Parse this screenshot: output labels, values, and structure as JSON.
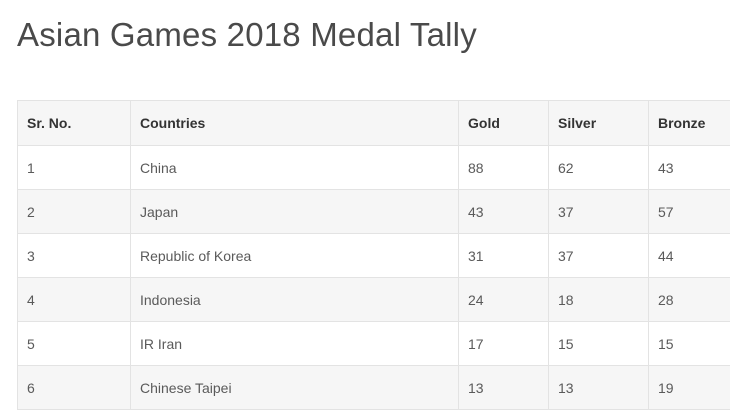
{
  "page": {
    "title": "Asian Games 2018 Medal Tally"
  },
  "table": {
    "headers": {
      "sr_no": "Sr. No.",
      "country": "Countries",
      "gold": "Gold",
      "silver": "Silver",
      "bronze": "Bronze"
    },
    "rows": [
      {
        "sr_no": "1",
        "country": "China",
        "gold": "88",
        "silver": "62",
        "bronze": "43"
      },
      {
        "sr_no": "2",
        "country": "Japan",
        "gold": "43",
        "silver": "37",
        "bronze": "57"
      },
      {
        "sr_no": "3",
        "country": "Republic of Korea",
        "gold": "31",
        "silver": "37",
        "bronze": "44"
      },
      {
        "sr_no": "4",
        "country": "Indonesia",
        "gold": "24",
        "silver": "18",
        "bronze": "28"
      },
      {
        "sr_no": "5",
        "country": "IR Iran",
        "gold": "17",
        "silver": "15",
        "bronze": "15"
      },
      {
        "sr_no": "6",
        "country": "Chinese Taipei",
        "gold": "13",
        "silver": "13",
        "bronze": "19"
      }
    ]
  },
  "colors": {
    "title_text": "#4a4a4a",
    "header_bg": "#f6f6f6",
    "stripe_bg": "#f6f6f6",
    "border": "#e3e3e3"
  }
}
